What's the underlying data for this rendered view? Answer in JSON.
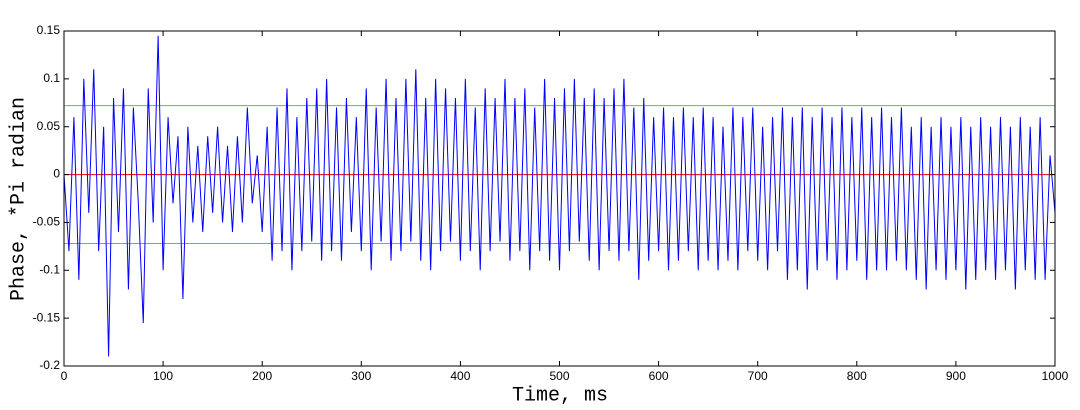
{
  "chart_data": {
    "type": "line",
    "xlabel": "Time, ms",
    "ylabel": "Phase, *Pi radian",
    "xlim": [
      0,
      1000
    ],
    "xticks": [
      0,
      100,
      200,
      300,
      400,
      500,
      600,
      700,
      800,
      900,
      1000
    ],
    "ylim": [
      -0.2,
      0.15
    ],
    "yticks": [
      -0.2,
      -0.15,
      -0.1,
      -0.05,
      0,
      0.05,
      0.1,
      0.15
    ],
    "hlines": [
      {
        "value": 0.072,
        "color": "#33dd33"
      },
      {
        "value": -0.072,
        "color": "#33dd33"
      },
      {
        "value": 0,
        "color": "#ff0000"
      }
    ],
    "x": [
      0,
      5,
      10,
      15,
      20,
      25,
      30,
      35,
      40,
      45,
      50,
      55,
      60,
      65,
      70,
      75,
      80,
      85,
      90,
      95,
      100,
      105,
      110,
      115,
      120,
      125,
      130,
      135,
      140,
      145,
      150,
      155,
      160,
      165,
      170,
      175,
      180,
      185,
      190,
      195,
      200,
      205,
      210,
      215,
      220,
      225,
      230,
      235,
      240,
      245,
      250,
      255,
      260,
      265,
      270,
      275,
      280,
      285,
      290,
      295,
      300,
      305,
      310,
      315,
      320,
      325,
      330,
      335,
      340,
      345,
      350,
      355,
      360,
      365,
      370,
      375,
      380,
      385,
      390,
      395,
      400,
      405,
      410,
      415,
      420,
      425,
      430,
      435,
      440,
      445,
      450,
      455,
      460,
      465,
      470,
      475,
      480,
      485,
      490,
      495,
      500,
      505,
      510,
      515,
      520,
      525,
      530,
      535,
      540,
      545,
      550,
      555,
      560,
      565,
      570,
      575,
      580,
      585,
      590,
      595,
      600,
      605,
      610,
      615,
      620,
      625,
      630,
      635,
      640,
      645,
      650,
      655,
      660,
      665,
      670,
      675,
      680,
      685,
      690,
      695,
      700,
      705,
      710,
      715,
      720,
      725,
      730,
      735,
      740,
      745,
      750,
      755,
      760,
      765,
      770,
      775,
      780,
      785,
      790,
      795,
      800,
      805,
      810,
      815,
      820,
      825,
      830,
      835,
      840,
      845,
      850,
      855,
      860,
      865,
      870,
      875,
      880,
      885,
      890,
      895,
      900,
      905,
      910,
      915,
      920,
      925,
      930,
      935,
      940,
      945,
      950,
      955,
      960,
      965,
      970,
      975,
      980,
      985,
      990,
      995,
      1000
    ],
    "series": [
      {
        "color": "#0000ff",
        "values": [
          0.0,
          -0.08,
          0.06,
          -0.11,
          0.1,
          -0.04,
          0.11,
          -0.08,
          0.05,
          -0.19,
          0.08,
          -0.06,
          0.09,
          -0.12,
          0.07,
          -0.03,
          -0.155,
          0.09,
          -0.05,
          0.145,
          -0.1,
          0.06,
          -0.03,
          0.04,
          -0.13,
          0.05,
          -0.05,
          0.03,
          -0.06,
          0.04,
          -0.04,
          0.05,
          -0.05,
          0.03,
          -0.06,
          0.04,
          -0.05,
          0.07,
          -0.03,
          0.02,
          -0.06,
          0.05,
          -0.09,
          0.07,
          -0.08,
          0.09,
          -0.1,
          0.06,
          -0.08,
          0.08,
          -0.07,
          0.09,
          -0.09,
          0.1,
          -0.08,
          0.07,
          -0.09,
          0.08,
          -0.06,
          0.06,
          -0.08,
          0.09,
          -0.1,
          0.07,
          -0.07,
          0.1,
          -0.09,
          0.08,
          -0.08,
          0.1,
          -0.07,
          0.11,
          -0.09,
          0.08,
          -0.1,
          0.1,
          -0.08,
          0.09,
          -0.07,
          0.08,
          -0.09,
          0.1,
          -0.08,
          0.07,
          -0.1,
          0.09,
          -0.08,
          0.08,
          -0.07,
          0.1,
          -0.09,
          0.08,
          -0.08,
          0.09,
          -0.1,
          0.07,
          -0.08,
          0.1,
          -0.09,
          0.08,
          -0.1,
          0.09,
          -0.08,
          0.1,
          -0.07,
          0.08,
          -0.09,
          0.09,
          -0.1,
          0.08,
          -0.08,
          0.09,
          -0.09,
          0.1,
          -0.08,
          0.07,
          -0.11,
          0.08,
          -0.09,
          0.06,
          -0.08,
          0.07,
          -0.1,
          0.06,
          -0.09,
          0.07,
          -0.08,
          0.06,
          -0.1,
          0.07,
          -0.09,
          0.06,
          -0.1,
          0.05,
          -0.09,
          0.07,
          -0.1,
          0.06,
          -0.08,
          0.07,
          -0.09,
          0.05,
          -0.1,
          0.06,
          -0.08,
          0.07,
          -0.11,
          0.06,
          -0.1,
          0.07,
          -0.12,
          0.06,
          -0.1,
          0.07,
          -0.09,
          0.06,
          -0.11,
          0.07,
          -0.1,
          0.06,
          -0.09,
          0.07,
          -0.11,
          0.06,
          -0.1,
          0.07,
          -0.1,
          0.06,
          -0.09,
          0.07,
          -0.1,
          0.05,
          -0.11,
          0.06,
          -0.12,
          0.05,
          -0.1,
          0.06,
          -0.11,
          0.05,
          -0.1,
          0.06,
          -0.12,
          0.05,
          -0.11,
          0.06,
          -0.1,
          0.05,
          -0.11,
          0.06,
          -0.1,
          0.05,
          -0.12,
          0.06,
          -0.1,
          0.05,
          -0.11,
          0.06,
          -0.11,
          0.02,
          -0.04
        ]
      }
    ]
  }
}
